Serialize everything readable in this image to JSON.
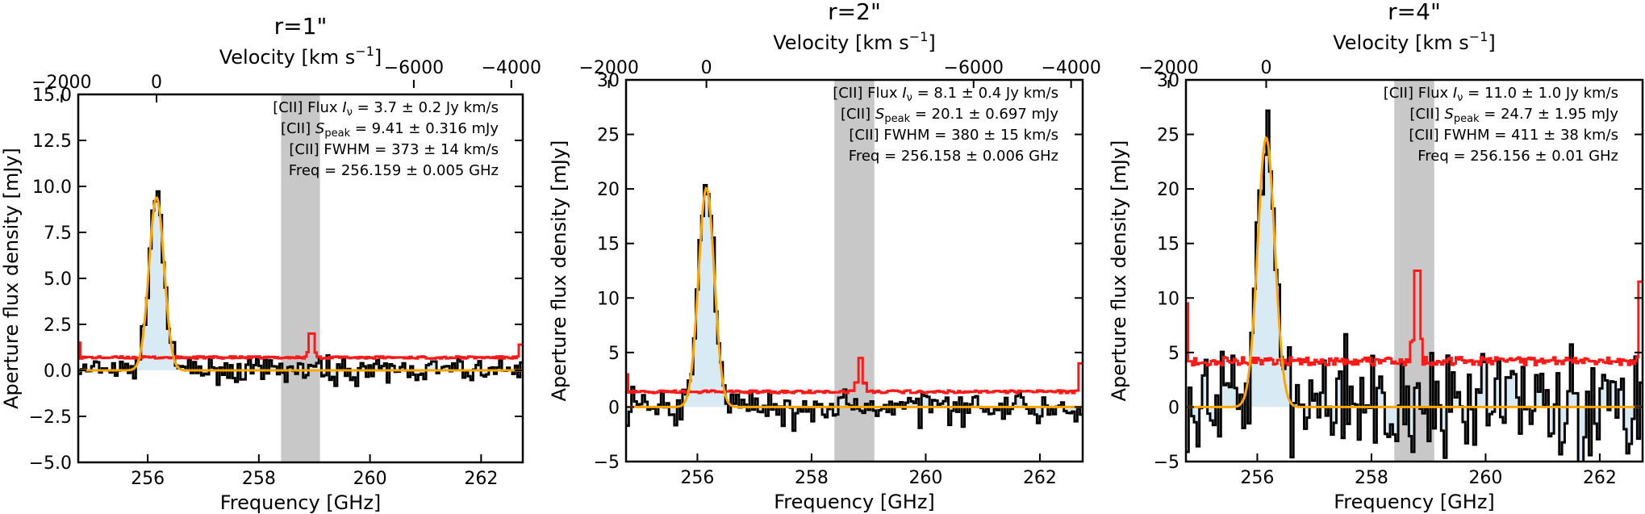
{
  "figure": {
    "axis_labels": {
      "x_bottom": "Frequency [GHz]",
      "x_top": "Velocity [km s",
      "x_top_sup": "−1",
      "x_top_close": "]",
      "y_left": "Aperture flux density [mJy]"
    },
    "colors": {
      "spectrum": "#000000",
      "noise": "#ff1a1a",
      "fit": "#ffa500",
      "fill": "#d8ebf4",
      "band": "#c8c8c8"
    }
  },
  "chart_data": [
    {
      "type": "line",
      "title": "r=1\"",
      "xlabel": "Frequency [GHz]",
      "ylabel": "Aperture flux density [mJy]",
      "top_xlabel": "Velocity [km s−1]",
      "xlim": [
        254.75,
        262.75
      ],
      "ylim": [
        -5.0,
        15.0
      ],
      "xticks": [
        256,
        258,
        260,
        262
      ],
      "xtick_labels": [
        "256",
        "258",
        "260",
        "262"
      ],
      "yticks": [
        -5.0,
        -2.5,
        0.0,
        2.5,
        5.0,
        7.5,
        10.0,
        12.5,
        15.0
      ],
      "ytick_labels": [
        "−5.0",
        "−2.5",
        "0.0",
        "2.5",
        "5.0",
        "7.5",
        "10.0",
        "12.5",
        "15.0"
      ],
      "top_ticks": [
        0,
        -2000,
        -4000,
        -6000
      ],
      "top_tick_labels": [
        "0",
        "−2000",
        "−4000",
        "−6000"
      ],
      "shaded_band": [
        258.4,
        259.1
      ],
      "gaussian_fit": {
        "center": 256.159,
        "peak": 9.41,
        "fwhm_kms": 373
      },
      "noise_level": 0.7,
      "noise_spike": {
        "x": 258.95,
        "y": 2.0
      },
      "noise_edge_spikes": [
        {
          "x": 254.75,
          "y": 1.5
        },
        {
          "x": 262.7,
          "y": 1.4
        }
      ],
      "spectrum_scatter": 0.4,
      "annotations": [
        {
          "prefix": "[CII] Flux ",
          "italic": "I",
          "sub": "ν",
          "suffix": " = 3.7 ± 0.2 Jy km/s"
        },
        {
          "prefix": "[CII] ",
          "italic": "S",
          "sub": "peak",
          "suffix": " = 9.41 ± 0.316 mJy"
        },
        {
          "prefix": "[CII] FWHM = 373 ± 14 km/s",
          "italic": "",
          "sub": "",
          "suffix": ""
        },
        {
          "prefix": "Freq = 256.159 ± 0.005 GHz",
          "italic": "",
          "sub": "",
          "suffix": ""
        }
      ]
    },
    {
      "type": "line",
      "title": "r=2\"",
      "xlabel": "Frequency [GHz]",
      "ylabel": "Aperture flux density [mJy]",
      "top_xlabel": "Velocity [km s−1]",
      "xlim": [
        254.75,
        262.75
      ],
      "ylim": [
        -5,
        30
      ],
      "xticks": [
        256,
        258,
        260,
        262
      ],
      "xtick_labels": [
        "256",
        "258",
        "260",
        "262"
      ],
      "yticks": [
        -5,
        0,
        5,
        10,
        15,
        20,
        25,
        30
      ],
      "ytick_labels": [
        "−5",
        "0",
        "5",
        "10",
        "15",
        "20",
        "25",
        "30"
      ],
      "top_ticks": [
        0,
        -2000,
        -4000,
        -6000
      ],
      "top_tick_labels": [
        "0",
        "−2000",
        "−4000",
        "−6000"
      ],
      "shaded_band": [
        258.4,
        259.1
      ],
      "gaussian_fit": {
        "center": 256.158,
        "peak": 20.1,
        "fwhm_kms": 380
      },
      "noise_level": 1.4,
      "noise_spike": {
        "x": 258.85,
        "y": 4.5
      },
      "noise_edge_spikes": [
        {
          "x": 254.75,
          "y": 3.0
        },
        {
          "x": 262.7,
          "y": 4.0
        }
      ],
      "spectrum_scatter": 1.0,
      "annotations": [
        {
          "prefix": "[CII] Flux ",
          "italic": "I",
          "sub": "ν",
          "suffix": " = 8.1 ± 0.4 Jy km/s"
        },
        {
          "prefix": "[CII] ",
          "italic": "S",
          "sub": "peak",
          "suffix": " = 20.1 ± 0.697 mJy"
        },
        {
          "prefix": "[CII] FWHM = 380 ± 15 km/s",
          "italic": "",
          "sub": "",
          "suffix": ""
        },
        {
          "prefix": "Freq = 256.158 ± 0.006 GHz",
          "italic": "",
          "sub": "",
          "suffix": ""
        }
      ]
    },
    {
      "type": "line",
      "title": "r=4\"",
      "xlabel": "Frequency [GHz]",
      "ylabel": "Aperture flux density [mJy]",
      "top_xlabel": "Velocity [km s−1]",
      "xlim": [
        254.75,
        262.75
      ],
      "ylim": [
        -5,
        30
      ],
      "xticks": [
        256,
        258,
        260,
        262
      ],
      "xtick_labels": [
        "256",
        "258",
        "260",
        "262"
      ],
      "yticks": [
        -5,
        0,
        5,
        10,
        15,
        20,
        25,
        30
      ],
      "ytick_labels": [
        "−5",
        "0",
        "5",
        "10",
        "15",
        "20",
        "25",
        "30"
      ],
      "top_ticks": [
        0,
        -2000,
        -4000,
        -6000
      ],
      "top_tick_labels": [
        "0",
        "−2000",
        "−4000",
        "−6000"
      ],
      "shaded_band": [
        258.4,
        259.1
      ],
      "gaussian_fit": {
        "center": 256.156,
        "peak": 24.7,
        "fwhm_kms": 411
      },
      "noise_level": 4.2,
      "noise_spike": {
        "x": 258.8,
        "y": 12.5
      },
      "noise_edge_spikes": [
        {
          "x": 254.75,
          "y": 9.5
        },
        {
          "x": 262.7,
          "y": 11.5
        }
      ],
      "spectrum_scatter": 3.0,
      "annotations": [
        {
          "prefix": "[CII] Flux ",
          "italic": "I",
          "sub": "ν",
          "suffix": " = 11.0 ± 1.0 Jy km/s"
        },
        {
          "prefix": "[CII] ",
          "italic": "S",
          "sub": "peak",
          "suffix": " = 24.7 ± 1.95 mJy"
        },
        {
          "prefix": "[CII] FWHM = 411 ± 38 km/s",
          "italic": "",
          "sub": "",
          "suffix": ""
        },
        {
          "prefix": "Freq = 256.156 ± 0.01 GHz",
          "italic": "",
          "sub": "",
          "suffix": ""
        }
      ]
    }
  ]
}
